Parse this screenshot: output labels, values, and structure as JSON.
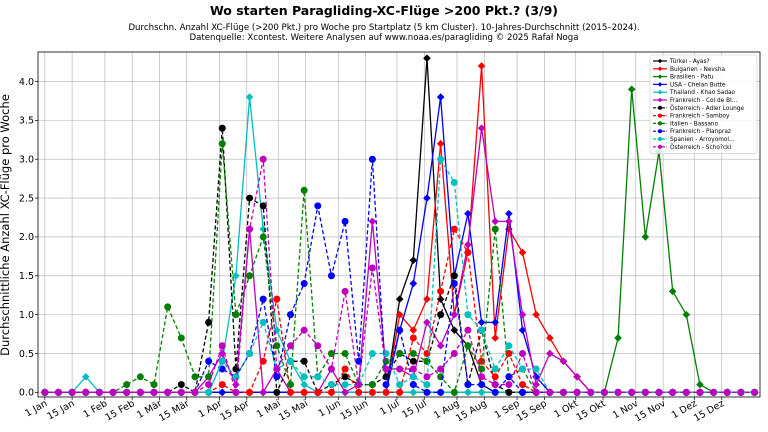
{
  "chart_data": {
    "type": "line",
    "title": "Wo starten Paragliding-XC-Flüge >200 Pkt.? (3/9)",
    "subtitle_lines": [
      "Durchschn. Anzahl XC-Flüge (>200 Pkt.) pro Woche pro Startplatz (5 km Cluster). 10-Jahres-Durchschnitt (2015–2024).",
      "Datenquelle: Xcontest. Weitere Analysen auf www.noaa.es/paragliding © 2025 Rafał Noga"
    ],
    "ylabel": "Durchschnittliche Anzahl XC-Flüge pro Woche",
    "ylim": [
      -0.06,
      4.38
    ],
    "yticks": [
      "0.0",
      "0.5",
      "1.0",
      "1.5",
      "2.0",
      "2.5",
      "3.0",
      "3.5",
      "4.0"
    ],
    "x_weeks": 53,
    "xlim": [
      -0.5,
      52.4
    ],
    "xticks": [
      {
        "week": 0,
        "label": "1 Jan"
      },
      {
        "week": 2,
        "label": "15 Jan"
      },
      {
        "week": 4.4,
        "label": "1 Feb"
      },
      {
        "week": 6.4,
        "label": "15 Feb"
      },
      {
        "week": 8.4,
        "label": "1 Mär"
      },
      {
        "week": 10.4,
        "label": "15 Mär"
      },
      {
        "week": 12.8,
        "label": "1 Apr"
      },
      {
        "week": 14.8,
        "label": "15 Apr"
      },
      {
        "week": 17.1,
        "label": "1 Mai"
      },
      {
        "week": 19.1,
        "label": "15 Mai"
      },
      {
        "week": 21.5,
        "label": "1 Jun"
      },
      {
        "week": 23.5,
        "label": "15 Jun"
      },
      {
        "week": 25.8,
        "label": "1 Jul"
      },
      {
        "week": 27.8,
        "label": "15 Jul"
      },
      {
        "week": 30.2,
        "label": "1 Aug"
      },
      {
        "week": 32.2,
        "label": "15 Aug"
      },
      {
        "week": 34.6,
        "label": "1 Sep"
      },
      {
        "week": 36.6,
        "label": "15 Sep"
      },
      {
        "week": 38.9,
        "label": "1 Okt"
      },
      {
        "week": 40.9,
        "label": "15 Okt"
      },
      {
        "week": 43.3,
        "label": "1 Nov"
      },
      {
        "week": 45.3,
        "label": "15 Nov"
      },
      {
        "week": 47.6,
        "label": "1 Dez"
      },
      {
        "week": 49.6,
        "label": "15 Dez"
      }
    ],
    "grid": true,
    "legend_position": "top-right",
    "series": [
      {
        "name": "Türkei - Ayas?",
        "color": "#000000",
        "dash": "solid",
        "marker": "diamond",
        "values": [
          0,
          0,
          0,
          0,
          0,
          0,
          0,
          0,
          0,
          0,
          0,
          0,
          0,
          0,
          0,
          0,
          0,
          0,
          0,
          0,
          0,
          0,
          0,
          0,
          0,
          0,
          1.2,
          1.7,
          4.3,
          1.2,
          0.8,
          0.6,
          0.1,
          0,
          0,
          0,
          0,
          0,
          0,
          0,
          0,
          0,
          0,
          0,
          0,
          0,
          0,
          0,
          0,
          0,
          0,
          0,
          0
        ]
      },
      {
        "name": "Bulgarien - Nevsha",
        "color": "#ff0000",
        "dash": "solid",
        "marker": "diamond",
        "values": [
          0,
          0,
          0,
          0,
          0,
          0,
          0,
          0,
          0,
          0,
          0,
          0,
          0,
          0,
          0,
          0,
          0,
          0,
          0,
          0,
          0,
          0,
          0,
          0,
          0,
          0,
          1.0,
          0.8,
          1.2,
          3.2,
          1.0,
          1.8,
          4.2,
          0.7,
          2.1,
          1.8,
          1.0,
          0.7,
          0.4,
          0.2,
          0,
          0,
          0,
          0,
          0,
          0,
          0,
          0,
          0,
          0,
          0,
          0,
          0
        ]
      },
      {
        "name": "Brasilien - Patu",
        "color": "#008000",
        "dash": "solid",
        "marker": "diamond",
        "values": [
          0,
          0,
          0,
          0,
          0,
          0,
          0,
          0,
          0,
          0,
          0,
          0,
          0,
          0,
          0,
          0,
          0,
          0,
          0,
          0,
          0,
          0,
          0,
          0,
          0,
          0,
          0,
          0,
          0,
          0,
          0,
          0,
          0,
          0,
          0,
          0,
          0,
          0,
          0,
          0,
          0,
          0,
          0.7,
          3.9,
          2.0,
          3.1,
          1.3,
          1.0,
          0.1,
          0,
          0,
          0,
          0
        ]
      },
      {
        "name": "USA - Chelan Butte",
        "color": "#0000ff",
        "dash": "solid",
        "marker": "diamond",
        "values": [
          0,
          0,
          0,
          0,
          0,
          0,
          0,
          0,
          0,
          0,
          0,
          0,
          0,
          0,
          0,
          0,
          0,
          0,
          0,
          0,
          0,
          0,
          0,
          0,
          0,
          0,
          0.8,
          1.4,
          2.5,
          3.8,
          1.5,
          2.3,
          0.9,
          0.9,
          2.3,
          0.8,
          0.2,
          0,
          0,
          0,
          0,
          0,
          0,
          0,
          0,
          0,
          0,
          0,
          0,
          0,
          0,
          0,
          0
        ]
      },
      {
        "name": "Thailand - Khao Sadao",
        "color": "#00bfbf",
        "dash": "solid",
        "marker": "diamond",
        "values": [
          0,
          0,
          0,
          0.2,
          0,
          0,
          0,
          0,
          0,
          0,
          0,
          0,
          0,
          0.4,
          1.5,
          3.8,
          2.1,
          0.8,
          0.4,
          0.1,
          0,
          0,
          0,
          0,
          0,
          0,
          0,
          0,
          0,
          0,
          0,
          0,
          0,
          0,
          0,
          0,
          0,
          0,
          0,
          0,
          0,
          0,
          0,
          0,
          0,
          0,
          0,
          0,
          0,
          0,
          0,
          0,
          0
        ]
      },
      {
        "name": "Frankreich - Col de Bl...",
        "color": "#bf00bf",
        "dash": "solid",
        "marker": "diamond",
        "values": [
          0,
          0,
          0,
          0,
          0,
          0,
          0,
          0,
          0,
          0,
          0,
          0,
          0.2,
          0.5,
          0.1,
          2.1,
          0,
          0.3,
          0,
          0,
          0,
          0.3,
          0,
          0.1,
          2.2,
          0.3,
          0.3,
          0.2,
          0.9,
          0.6,
          1.0,
          1.9,
          3.4,
          2.2,
          2.2,
          1.0,
          0.1,
          0.5,
          0.4,
          0.2,
          0,
          0,
          0,
          0,
          0,
          0,
          0,
          0,
          0,
          0,
          0,
          0,
          0
        ]
      },
      {
        "name": "Österreich - Adler Lounge",
        "color": "#000000",
        "dash": "dashed",
        "marker": "circle",
        "values": [
          0,
          0,
          0,
          0,
          0,
          0,
          0,
          0,
          0,
          0,
          0.1,
          0,
          0.9,
          3.4,
          0.3,
          2.5,
          2.4,
          0,
          0.4,
          0.4,
          0,
          0.1,
          0.2,
          0.1,
          0.1,
          0.2,
          0.5,
          0.4,
          0.4,
          1.0,
          1.5,
          0.1,
          0.8,
          0.1,
          0,
          0,
          0,
          0,
          0,
          0,
          0,
          0,
          0,
          0,
          0,
          0,
          0,
          0,
          0,
          0,
          0,
          0,
          0
        ]
      },
      {
        "name": "Frankreich - Samboy",
        "color": "#ff0000",
        "dash": "dashed",
        "marker": "circle",
        "values": [
          0,
          0,
          0,
          0,
          0,
          0,
          0,
          0,
          0,
          0,
          0,
          0,
          0,
          0.1,
          0,
          0,
          0.4,
          1.2,
          0,
          0,
          0,
          0,
          0.3,
          0,
          0,
          0,
          0,
          0.7,
          0.5,
          1.3,
          2.1,
          1.8,
          0.4,
          0.2,
          0.5,
          0.1,
          0,
          0,
          0,
          0,
          0,
          0,
          0,
          0,
          0,
          0,
          0,
          0,
          0,
          0,
          0,
          0,
          0
        ]
      },
      {
        "name": "Italien - Bassano",
        "color": "#008000",
        "dash": "dashed",
        "marker": "circle",
        "values": [
          0,
          0,
          0,
          0,
          0,
          0,
          0.1,
          0.2,
          0.1,
          1.1,
          0.7,
          0.2,
          0.2,
          3.2,
          1.0,
          1.5,
          2.0,
          0.6,
          0.1,
          2.6,
          0.2,
          0.5,
          0.5,
          0.1,
          0.1,
          0.4,
          0.5,
          0.5,
          0.4,
          0.2,
          0,
          0.6,
          0.3,
          2.1,
          0.2,
          0.3,
          0,
          0,
          0,
          0,
          0,
          0,
          0,
          0,
          0,
          0,
          0,
          0,
          0,
          0,
          0,
          0,
          0
        ]
      },
      {
        "name": "Frankreich - Planpraz",
        "color": "#0000ff",
        "dash": "dashed",
        "marker": "circle",
        "values": [
          0,
          0,
          0,
          0,
          0,
          0,
          0,
          0,
          0,
          0,
          0,
          0,
          0.4,
          0.3,
          0.2,
          0.5,
          1.2,
          0.2,
          1.0,
          1.4,
          2.4,
          1.5,
          2.2,
          0.4,
          3.0,
          0.1,
          0.8,
          0.1,
          0,
          0,
          1.4,
          0.1,
          0.1,
          0,
          0.2,
          0,
          0,
          0,
          0,
          0,
          0,
          0,
          0,
          0,
          0,
          0,
          0,
          0,
          0,
          0,
          0,
          0,
          0
        ]
      },
      {
        "name": "Spanien - Arroyomol...",
        "color": "#00bfbf",
        "dash": "dashed",
        "marker": "circle",
        "values": [
          0,
          0,
          0,
          0,
          0,
          0,
          0,
          0,
          0,
          0,
          0,
          0,
          0,
          0.4,
          0.2,
          0.5,
          0.9,
          0.3,
          0.4,
          0.2,
          0.2,
          0.1,
          0.1,
          0.1,
          0.5,
          0.5,
          0.1,
          0.2,
          0.1,
          3.0,
          2.7,
          1.0,
          0.8,
          0.3,
          0.6,
          0.3,
          0.3,
          0,
          0,
          0,
          0,
          0,
          0,
          0,
          0,
          0,
          0,
          0,
          0,
          0,
          0,
          0,
          0
        ]
      },
      {
        "name": "Österreich - Scho?ckl",
        "color": "#bf00bf",
        "dash": "dashed",
        "marker": "circle",
        "values": [
          0,
          0,
          0,
          0,
          0,
          0,
          0,
          0,
          0,
          0,
          0,
          0,
          0.1,
          0.6,
          0,
          2.1,
          3.0,
          0.3,
          0.6,
          0.8,
          0.6,
          0.3,
          1.3,
          0.1,
          1.6,
          0.3,
          0.3,
          0.3,
          0.2,
          0.3,
          0.5,
          0.8,
          0.2,
          0.1,
          0.1,
          0.5,
          0,
          0,
          0,
          0,
          0,
          0,
          0,
          0,
          0,
          0,
          0,
          0,
          0,
          0,
          0,
          0,
          0
        ]
      }
    ]
  }
}
